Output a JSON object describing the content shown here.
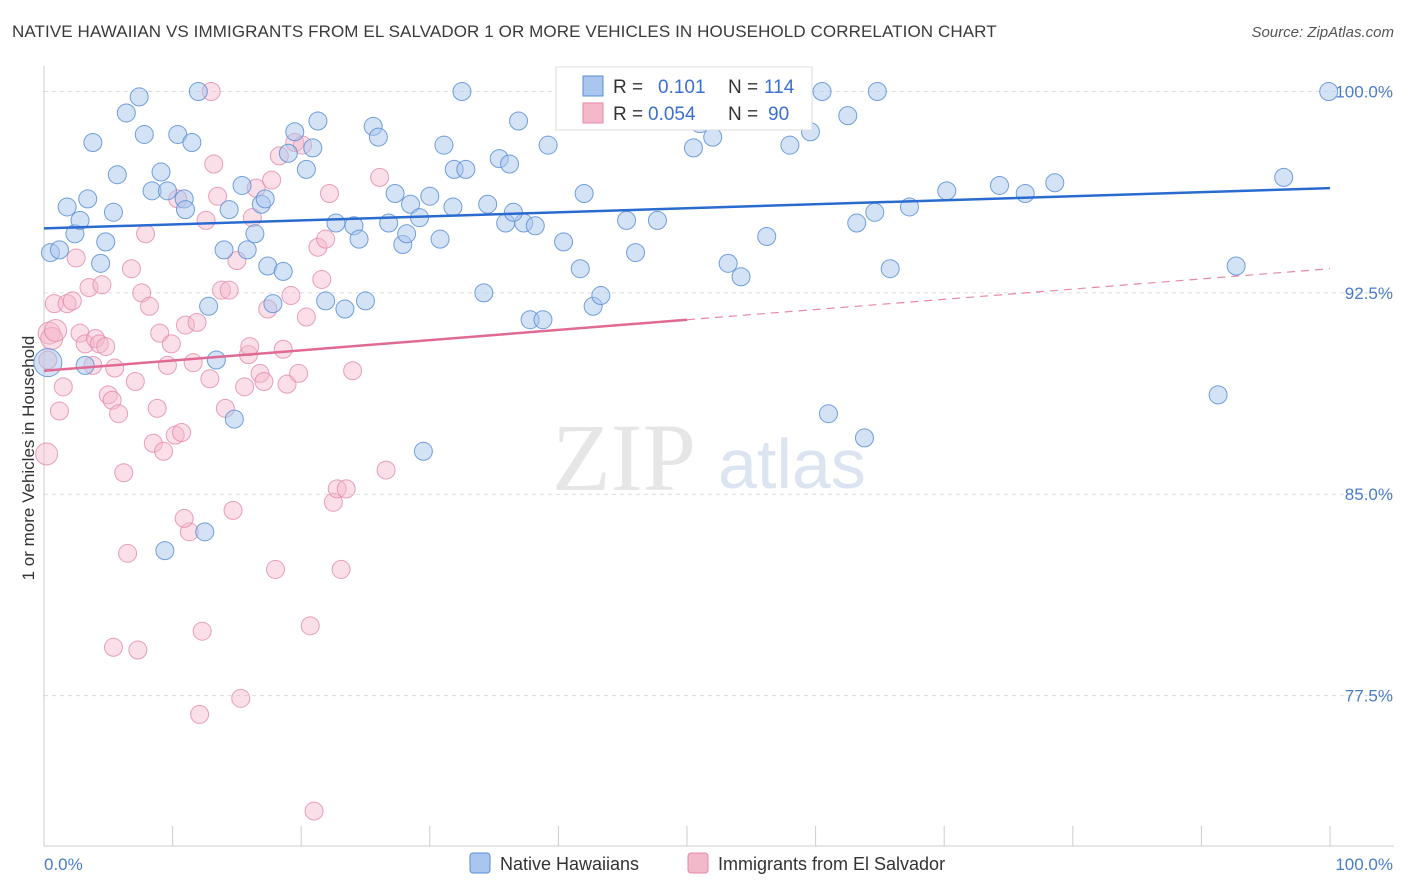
{
  "header": {
    "title": "NATIVE HAWAIIAN VS IMMIGRANTS FROM EL SALVADOR 1 OR MORE VEHICLES IN HOUSEHOLD CORRELATION CHART",
    "source": "Source: ZipAtlas.com"
  },
  "watermark": {
    "zip": "ZIP",
    "atlas": "atlas"
  },
  "legend": {
    "rows": [
      {
        "r_label": "R =",
        "r_value": "0.101",
        "n_label": "N =",
        "n_value": "114"
      },
      {
        "r_label": "R =",
        "r_value": "0.054",
        "n_label": "N =",
        "n_value": "90"
      }
    ]
  },
  "bottom_legend": {
    "items": [
      "Native Hawaiians",
      "Immigrants from El Salvador"
    ]
  },
  "chart_data": {
    "type": "scatter",
    "ylabel": "1 or more Vehicles in Household",
    "xlim": [
      0,
      100
    ],
    "ylim": [
      71.9,
      100.8
    ],
    "x_tick_labels": [
      "0.0%",
      "100.0%"
    ],
    "y_ticks": [
      100.0,
      92.5,
      85.0,
      77.5
    ],
    "y_tick_labels": [
      "100.0%",
      "92.5%",
      "85.0%",
      "77.5%"
    ],
    "grid": true,
    "colors": {
      "blue_fill": "#a9c6ee",
      "blue_stroke": "#5b8fd6",
      "blue_line": "#2a6bd0",
      "pink_fill": "#f4b8cb",
      "pink_stroke": "#e48aa6",
      "pink_line": "#e06a93"
    },
    "series": [
      {
        "name": "Native Hawaiians",
        "trend": {
          "x": [
            0,
            100
          ],
          "y": [
            94.9,
            96.4
          ]
        },
        "points": [
          [
            0.3,
            89.9
          ],
          [
            0.5,
            94.0
          ],
          [
            1.2,
            94.1
          ],
          [
            1.8,
            95.7
          ],
          [
            2.4,
            94.7
          ],
          [
            2.8,
            95.2
          ],
          [
            3.4,
            96.0
          ],
          [
            3.8,
            98.1
          ],
          [
            4.4,
            93.6
          ],
          [
            4.8,
            94.4
          ],
          [
            5.4,
            95.5
          ],
          [
            5.7,
            96.9
          ],
          [
            6.4,
            99.2
          ],
          [
            7.4,
            99.8
          ],
          [
            7.8,
            98.4
          ],
          [
            8.4,
            96.3
          ],
          [
            9.1,
            97.0
          ],
          [
            9.6,
            96.3
          ],
          [
            10.4,
            98.4
          ],
          [
            10.9,
            96.0
          ],
          [
            11.0,
            95.6
          ],
          [
            11.5,
            98.1
          ],
          [
            12.0,
            100.0
          ],
          [
            12.8,
            92.0
          ],
          [
            13.4,
            90.0
          ],
          [
            14.0,
            94.1
          ],
          [
            14.4,
            95.6
          ],
          [
            14.8,
            87.8
          ],
          [
            15.4,
            96.5
          ],
          [
            15.8,
            94.1
          ],
          [
            16.4,
            94.7
          ],
          [
            16.9,
            95.8
          ],
          [
            17.4,
            93.5
          ],
          [
            17.8,
            92.1
          ],
          [
            18.6,
            93.3
          ],
          [
            19.0,
            97.7
          ],
          [
            19.5,
            98.5
          ],
          [
            20.4,
            97.1
          ],
          [
            20.9,
            97.9
          ],
          [
            21.3,
            98.9
          ],
          [
            21.9,
            92.2
          ],
          [
            22.7,
            95.1
          ],
          [
            23.4,
            91.9
          ],
          [
            24.1,
            95.0
          ],
          [
            24.5,
            94.5
          ],
          [
            25.0,
            92.2
          ],
          [
            25.6,
            98.7
          ],
          [
            26.0,
            98.3
          ],
          [
            26.8,
            95.1
          ],
          [
            27.3,
            96.2
          ],
          [
            27.9,
            94.3
          ],
          [
            28.2,
            94.7
          ],
          [
            28.5,
            95.8
          ],
          [
            29.2,
            95.3
          ],
          [
            29.5,
            86.6
          ],
          [
            30.0,
            96.1
          ],
          [
            30.8,
            94.5
          ],
          [
            31.1,
            98.0
          ],
          [
            31.8,
            95.7
          ],
          [
            31.9,
            97.1
          ],
          [
            32.5,
            100.0
          ],
          [
            32.8,
            97.1
          ],
          [
            34.2,
            92.5
          ],
          [
            34.5,
            95.8
          ],
          [
            35.4,
            97.5
          ],
          [
            35.9,
            95.1
          ],
          [
            36.2,
            97.3
          ],
          [
            36.9,
            98.9
          ],
          [
            37.3,
            95.1
          ],
          [
            37.8,
            91.5
          ],
          [
            38.2,
            95.0
          ],
          [
            38.8,
            91.5
          ],
          [
            39.2,
            98.0
          ],
          [
            40.4,
            94.4
          ],
          [
            41.0,
            100.0
          ],
          [
            41.7,
            93.4
          ],
          [
            42.0,
            96.2
          ],
          [
            42.7,
            92.0
          ],
          [
            43.3,
            92.4
          ],
          [
            43.6,
            99.8
          ],
          [
            45.3,
            95.2
          ],
          [
            46.0,
            94.0
          ],
          [
            47.7,
            95.2
          ],
          [
            50.5,
            97.9
          ],
          [
            51.0,
            98.8
          ],
          [
            52.0,
            98.3
          ],
          [
            53.2,
            93.6
          ],
          [
            54.2,
            93.1
          ],
          [
            56.2,
            94.6
          ],
          [
            58.0,
            98.0
          ],
          [
            59.6,
            98.5
          ],
          [
            60.5,
            100.0
          ],
          [
            61.0,
            88.0
          ],
          [
            62.5,
            99.1
          ],
          [
            63.2,
            95.1
          ],
          [
            63.8,
            87.1
          ],
          [
            64.6,
            95.5
          ],
          [
            64.8,
            100.0
          ],
          [
            65.8,
            93.4
          ],
          [
            67.3,
            95.7
          ],
          [
            70.2,
            96.3
          ],
          [
            74.3,
            96.5
          ],
          [
            76.3,
            96.2
          ],
          [
            78.6,
            96.6
          ],
          [
            91.3,
            88.7
          ],
          [
            92.7,
            93.5
          ],
          [
            96.4,
            96.8
          ],
          [
            99.9,
            100.0
          ],
          [
            3.2,
            89.8
          ],
          [
            9.4,
            82.9
          ],
          [
            12.5,
            83.6
          ],
          [
            17.2,
            96.0
          ],
          [
            36.5,
            95.5
          ],
          [
            55.0,
            99.5
          ]
        ]
      },
      {
        "name": "Immigrants from El Salvador",
        "trend": {
          "x": [
            0,
            50
          ],
          "y": [
            89.6,
            91.5
          ]
        },
        "trend_extended": {
          "x": [
            50,
            100
          ],
          "y": [
            91.5,
            93.4
          ]
        },
        "points": [
          [
            0.2,
            86.5
          ],
          [
            0.3,
            90.0
          ],
          [
            0.4,
            91.0
          ],
          [
            0.6,
            90.8
          ],
          [
            0.8,
            92.1
          ],
          [
            0.9,
            91.1
          ],
          [
            1.2,
            88.1
          ],
          [
            1.5,
            89.0
          ],
          [
            1.8,
            92.1
          ],
          [
            2.2,
            92.2
          ],
          [
            2.5,
            93.8
          ],
          [
            2.8,
            91.0
          ],
          [
            3.2,
            90.6
          ],
          [
            3.5,
            92.7
          ],
          [
            3.8,
            89.8
          ],
          [
            4.0,
            90.8
          ],
          [
            4.3,
            90.6
          ],
          [
            4.5,
            92.8
          ],
          [
            4.8,
            90.5
          ],
          [
            5.0,
            88.7
          ],
          [
            5.3,
            88.5
          ],
          [
            5.5,
            89.7
          ],
          [
            5.8,
            88.0
          ],
          [
            6.2,
            85.8
          ],
          [
            6.5,
            82.8
          ],
          [
            6.8,
            93.4
          ],
          [
            7.1,
            89.2
          ],
          [
            7.3,
            79.2
          ],
          [
            7.6,
            92.5
          ],
          [
            7.9,
            94.7
          ],
          [
            8.2,
            92.0
          ],
          [
            8.5,
            86.9
          ],
          [
            8.8,
            88.2
          ],
          [
            9.0,
            91.0
          ],
          [
            9.3,
            86.6
          ],
          [
            9.6,
            89.8
          ],
          [
            9.9,
            90.6
          ],
          [
            10.2,
            87.2
          ],
          [
            10.4,
            96.0
          ],
          [
            10.7,
            87.3
          ],
          [
            11.0,
            91.3
          ],
          [
            11.3,
            83.6
          ],
          [
            11.6,
            89.9
          ],
          [
            11.9,
            91.4
          ],
          [
            12.1,
            76.8
          ],
          [
            12.3,
            79.9
          ],
          [
            12.6,
            95.2
          ],
          [
            12.9,
            89.3
          ],
          [
            13.2,
            97.3
          ],
          [
            13.5,
            96.1
          ],
          [
            13.8,
            92.6
          ],
          [
            14.1,
            88.2
          ],
          [
            14.4,
            92.6
          ],
          [
            14.7,
            84.4
          ],
          [
            15.0,
            93.7
          ],
          [
            15.3,
            77.4
          ],
          [
            15.6,
            89.0
          ],
          [
            15.9,
            90.2
          ],
          [
            16.2,
            95.3
          ],
          [
            16.5,
            96.4
          ],
          [
            16.8,
            89.5
          ],
          [
            17.1,
            89.2
          ],
          [
            17.4,
            91.9
          ],
          [
            17.7,
            96.7
          ],
          [
            18.0,
            82.2
          ],
          [
            18.3,
            97.6
          ],
          [
            18.6,
            90.4
          ],
          [
            18.9,
            89.1
          ],
          [
            19.2,
            92.4
          ],
          [
            19.5,
            98.1
          ],
          [
            19.8,
            89.5
          ],
          [
            20.1,
            98.0
          ],
          [
            20.4,
            91.6
          ],
          [
            20.7,
            80.1
          ],
          [
            21.0,
            73.2
          ],
          [
            21.3,
            94.2
          ],
          [
            21.6,
            93.0
          ],
          [
            21.9,
            94.5
          ],
          [
            22.2,
            96.2
          ],
          [
            22.5,
            84.7
          ],
          [
            22.8,
            85.2
          ],
          [
            23.1,
            82.2
          ],
          [
            23.5,
            85.2
          ],
          [
            26.1,
            96.8
          ],
          [
            26.6,
            85.9
          ],
          [
            24.0,
            89.6
          ],
          [
            13.0,
            100.0
          ],
          [
            10.9,
            84.1
          ],
          [
            5.4,
            79.3
          ],
          [
            16.0,
            90.5
          ]
        ]
      }
    ]
  }
}
